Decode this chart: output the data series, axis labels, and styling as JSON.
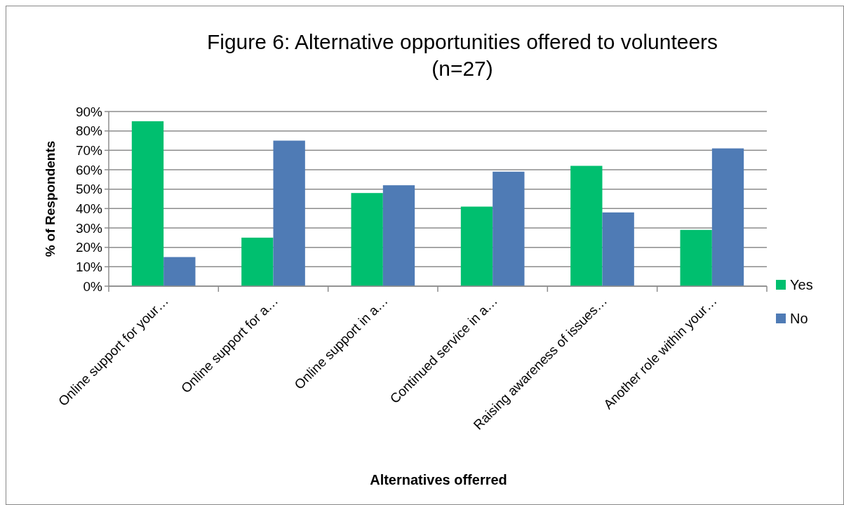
{
  "chart_data": {
    "type": "bar",
    "title": "Figure 6: Alternative opportunities offered to volunteers (n=27)",
    "xlabel": "Alternatives offerred",
    "ylabel": "% of Respondents",
    "categories": [
      "Online support for your…",
      "Online support for a…",
      "Online support in a…",
      "Continued service in a…",
      "Raising awareness of issues…",
      "Another role within your…"
    ],
    "series": [
      {
        "name": "Yes",
        "color": "#00bf6f",
        "values": [
          85,
          25,
          48,
          41,
          62,
          29
        ]
      },
      {
        "name": "No",
        "color": "#4f7bb5",
        "values": [
          15,
          75,
          52,
          59,
          38,
          71
        ]
      }
    ],
    "ylim": [
      0,
      90
    ],
    "yticks": [
      {
        "value": 0,
        "label": "0%"
      },
      {
        "value": 10,
        "label": "10%"
      },
      {
        "value": 20,
        "label": "20%"
      },
      {
        "value": 30,
        "label": "30%"
      },
      {
        "value": 40,
        "label": "40%"
      },
      {
        "value": 50,
        "label": "50%"
      },
      {
        "value": 60,
        "label": "60%"
      },
      {
        "value": 70,
        "label": "70%"
      },
      {
        "value": 80,
        "label": "80%"
      },
      {
        "value": 90,
        "label": "90%"
      }
    ],
    "grid": "y",
    "legend": "right"
  }
}
